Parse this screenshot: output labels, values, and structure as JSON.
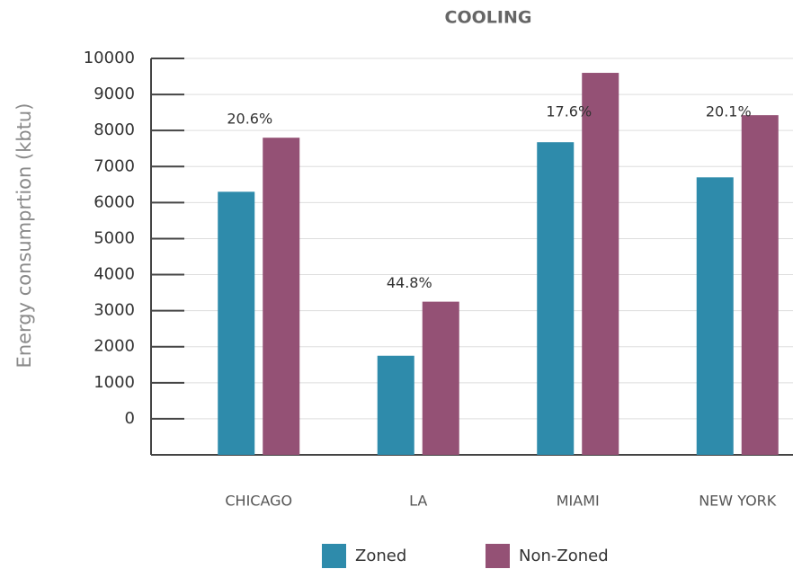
{
  "chart_data": {
    "type": "bar",
    "title": "COOLING",
    "y_label": "Energy consumprtion (kbtu)",
    "categories": [
      "CHICAGO",
      "LA",
      "MIAMI",
      "NEW YORK"
    ],
    "series": [
      {
        "name": "Zoned",
        "color": "#2e8bab",
        "values": [
          6300,
          1750,
          7675,
          6700
        ]
      },
      {
        "name": "Non-Zoned",
        "color": "#945175",
        "values": [
          7800,
          3250,
          9600,
          8425
        ]
      }
    ],
    "annotations": [
      "20.6%",
      "44.8%",
      "17.6%",
      "20.1%"
    ],
    "ylim": [
      -1000,
      10000
    ],
    "yticks": [
      0,
      1000,
      2000,
      3000,
      4000,
      5000,
      6000,
      7000,
      8000,
      9000,
      10000
    ],
    "grid": true,
    "legend": "bottom"
  }
}
